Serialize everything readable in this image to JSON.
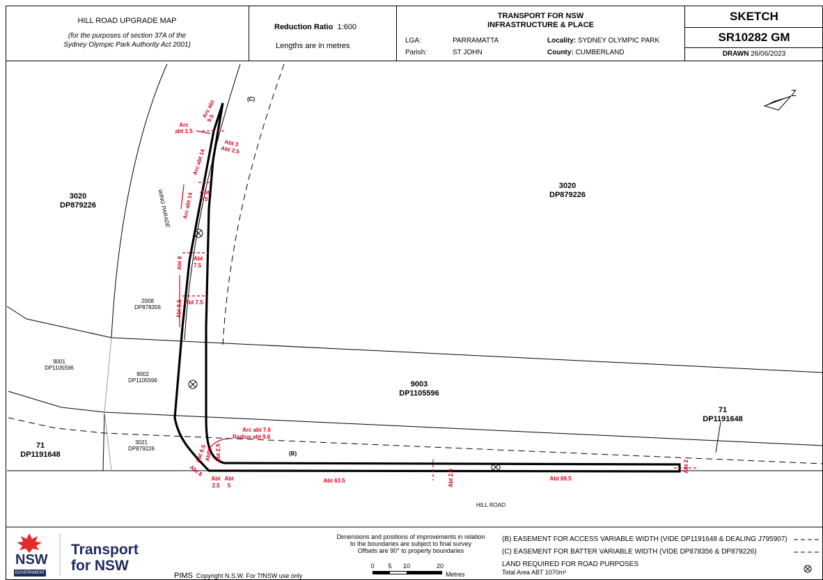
{
  "header": {
    "map_title": "HILL ROAD UPGRADE MAP",
    "map_subtitle_1": "(for the purposes of section 37A of the",
    "map_subtitle_2": "Sydney Olympic Park Authority Act 2001)",
    "reduction_ratio_label": "Reduction Ratio",
    "reduction_ratio_value": "1:600",
    "lengths_note": "Lengths are in metres",
    "agency_1": "TRANSPORT FOR NSW",
    "agency_2": "INFRASTRUCTURE & PLACE",
    "lga_label": "LGA:",
    "lga_value": "PARRAMATTA",
    "locality_label": "Locality:",
    "locality_value": "SYDNEY OLYMPIC PARK",
    "parish_label": "Parish:",
    "parish_value": "ST JOHN",
    "county_label": "County:",
    "county_value": "CUMBERLAND",
    "sketch_label": "SKETCH",
    "sketch_number": "SR10282 GM",
    "drawn_label": "DRAWN",
    "drawn_date": "26/06/2023"
  },
  "map": {
    "lots": [
      {
        "id": "3020",
        "dp": "DP879226"
      },
      {
        "id": "3020",
        "dp": "DP879226"
      },
      {
        "id": "2008",
        "dp": "DP878356"
      },
      {
        "id": "9001",
        "dp": "DP1105596"
      },
      {
        "id": "9002",
        "dp": "DP1105596"
      },
      {
        "id": "9003",
        "dp": "DP1105596"
      },
      {
        "id": "71",
        "dp": "DP1191648"
      },
      {
        "id": "71",
        "dp": "DP1191648"
      },
      {
        "id": "3021",
        "dp": "DP879226"
      }
    ],
    "roads": {
      "wing_parade": "WING PARADE",
      "hill_road": "HILL ROAD"
    },
    "easement_tags": {
      "c": "(C)",
      "b": "(B)"
    },
    "north_symbol": "Z",
    "dims": {
      "arc95_a": "Arc abt",
      "arc95_b": "9.5",
      "arc15_a": "Arc",
      "arc15_b": "abt 1.5",
      "abt3": "Abt 3",
      "abt25_top": "Abt 2.5",
      "arc14_a": "Arc abt 14",
      "arc14_b": "Arc abt 14",
      "abt45_a": "Abt",
      "abt45_b": "4.5",
      "abt8": "Abt 8",
      "abt75_a": "Abt",
      "abt75_b": "7.5",
      "abt85": "Abt 8.5",
      "abt75_2": "Abt 7.5",
      "arc76": "Arc abt 7.6",
      "radius96": "Radius abt 9.6",
      "abt65": "Abt 6.5",
      "abt4": "Abt 4",
      "abt25_mid": "Abt 2.5",
      "abt8_b": "Abt 8",
      "abt25_b1": "Abt",
      "abt25_b2": "2.5",
      "abt5_b1": "Abt",
      "abt5_b2": "5",
      "abt635": "Abt 63.5",
      "abt25_road": "Abt 2.5",
      "abt695": "Abt 69.5",
      "abt2": "Abt 2"
    }
  },
  "footer": {
    "brand_1": "Transport",
    "brand_2": "for NSW",
    "nsw": "NSW",
    "government": "GOVERNMENT",
    "pims": "PIMS",
    "copyright": "Copyright N.S.W. For TfNSW use only",
    "disclaimer_1": "Dimensions and positions of improvements in relation",
    "disclaimer_2": "to the boundaries are subject to final survey",
    "disclaimer_3": "Offsets are 90° to property boundaries",
    "scale_ticks": [
      "0",
      "5",
      "10",
      "20"
    ],
    "scale_unit": "Metres",
    "legend_b": "(B) EASEMENT FOR ACCESS VARIABLE WIDTH (VIDE DP1191648 & DEALING J795907)",
    "legend_c": "(C) EASEMENT FOR BATTER VARIABLE WIDTH (VIDE DP878356 & DP879226)",
    "legend_land": "LAND REQUIRED FOR ROAD PURPOSES",
    "total_area": "Total Area ABT 1070m²"
  },
  "colors": {
    "dimension": "#d0021b",
    "brand": "#1d2a5a",
    "waratah": "#e32b2b"
  }
}
